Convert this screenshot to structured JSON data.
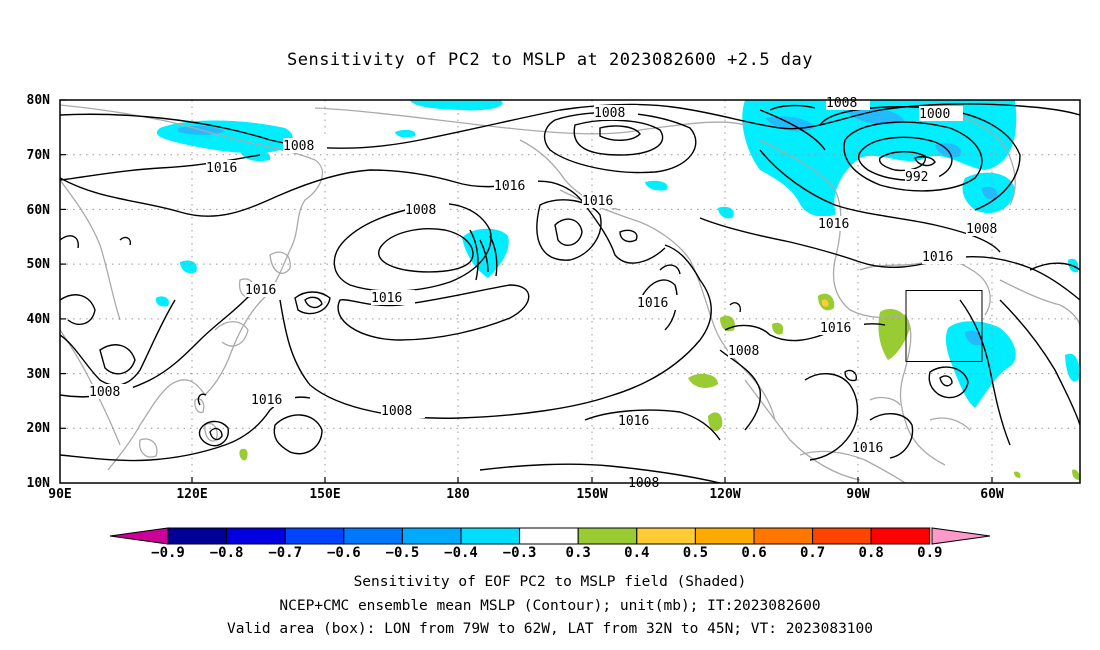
{
  "title": "Sensitivity of PC2 to MSLP at 2023082600 +2.5 day",
  "map": {
    "lat_labels": [
      "80N",
      "70N",
      "60N",
      "50N",
      "40N",
      "30N",
      "20N",
      "10N"
    ],
    "lon_labels": [
      "90E",
      "120E",
      "150E",
      "180",
      "150W",
      "120W",
      "90W",
      "60W"
    ],
    "contour_labels": [
      {
        "text": "1008",
        "id": "c1"
      },
      {
        "text": "1008",
        "id": "c2"
      },
      {
        "text": "1000",
        "id": "c3"
      },
      {
        "text": "1008",
        "id": "c4"
      },
      {
        "text": "1016",
        "id": "c5"
      },
      {
        "text": "1016",
        "id": "c6"
      },
      {
        "text": "992",
        "id": "c7"
      },
      {
        "text": "1008",
        "id": "c8"
      },
      {
        "text": "1016",
        "id": "c9"
      },
      {
        "text": "1016",
        "id": "c10"
      },
      {
        "text": "1016",
        "id": "c11"
      },
      {
        "text": "1008",
        "id": "c12"
      },
      {
        "text": "1016",
        "id": "c13"
      },
      {
        "text": "1016",
        "id": "c14"
      },
      {
        "text": "1016",
        "id": "c15"
      },
      {
        "text": "1016",
        "id": "c16"
      },
      {
        "text": "1008",
        "id": "c17"
      },
      {
        "text": "1008",
        "id": "c18"
      },
      {
        "text": "1016",
        "id": "c19"
      },
      {
        "text": "1008",
        "id": "c20"
      },
      {
        "text": "1016",
        "id": "c21"
      },
      {
        "text": "1016",
        "id": "c22"
      },
      {
        "text": "1008",
        "id": "c23"
      },
      {
        "text": "1008",
        "id": "c24"
      }
    ]
  },
  "colorbar": {
    "labels": [
      "-0.9",
      "-0.8",
      "-0.7",
      "-0.6",
      "-0.5",
      "-0.4",
      "-0.3",
      "0.3",
      "0.4",
      "0.5",
      "0.6",
      "0.7",
      "0.8",
      "0.9"
    ],
    "colors": [
      "#000099",
      "#0000e0",
      "#0044ff",
      "#0077ff",
      "#00aaff",
      "#00ddff",
      "#ffffff",
      "#99cc33",
      "#ffcc33",
      "#ffaa00",
      "#ff7700",
      "#ff4400",
      "#ff0000"
    ],
    "low_extend_color": "#cc0099",
    "high_extend_color": "#ff99cc"
  },
  "captions": [
    "Sensitivity of EOF PC2 to MSLP field (Shaded)",
    "NCEP+CMC ensemble mean MSLP (Contour); unit(mb); IT:2023082600",
    "Valid area (box): LON from 79W to 62W, LAT from 32N to 45N; VT: 2023083100"
  ]
}
